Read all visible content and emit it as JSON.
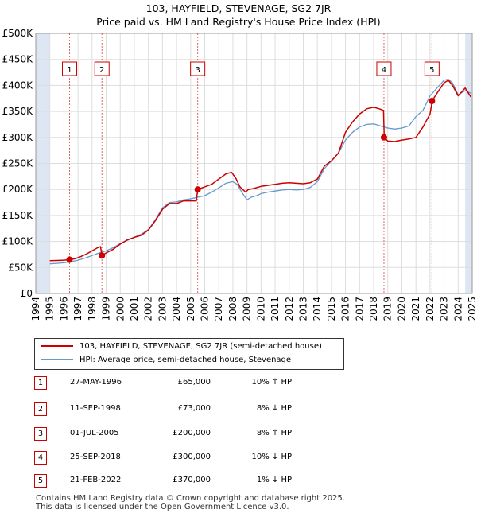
{
  "title_line1": "103, HAYFIELD, STEVENAGE, SG2 7JR",
  "title_line2": "Price paid vs. HM Land Registry's House Price Index (HPI)",
  "colors": {
    "property": "#cc0000",
    "hpi": "#6699cc",
    "shade": "#dde6f2",
    "grid": "#dddddd",
    "marker": "#cc0000"
  },
  "chart_data": {
    "type": "line",
    "xlim": [
      1994,
      2025
    ],
    "ylim": [
      0,
      500000
    ],
    "x_ticks": [
      "1994",
      "1995",
      "1996",
      "1997",
      "1998",
      "1999",
      "2000",
      "2001",
      "2002",
      "2003",
      "2004",
      "2005",
      "2006",
      "2007",
      "2008",
      "2009",
      "2010",
      "2011",
      "2012",
      "2013",
      "2014",
      "2015",
      "2016",
      "2017",
      "2018",
      "2019",
      "2020",
      "2021",
      "2022",
      "2023",
      "2024",
      "2025"
    ],
    "y_ticks": [
      {
        "value": 0,
        "label": "£0"
      },
      {
        "value": 50000,
        "label": "£50K"
      },
      {
        "value": 100000,
        "label": "£100K"
      },
      {
        "value": 150000,
        "label": "£150K"
      },
      {
        "value": 200000,
        "label": "£200K"
      },
      {
        "value": 250000,
        "label": "£250K"
      },
      {
        "value": 300000,
        "label": "£300K"
      },
      {
        "value": 350000,
        "label": "£350K"
      },
      {
        "value": 400000,
        "label": "£400K"
      },
      {
        "value": 450000,
        "label": "£450K"
      },
      {
        "value": 500000,
        "label": "£500K"
      }
    ],
    "shaded_ranges": [
      [
        1994,
        1995
      ],
      [
        2024.5,
        2025
      ]
    ],
    "series": [
      {
        "name": "103, HAYFIELD, STEVENAGE, SG2 7JR (semi-detached house)",
        "color": "#cc0000",
        "x": [
          1995.0,
          1995.5,
          1996.0,
          1996.4,
          1996.8,
          1997.2,
          1997.6,
          1998.0,
          1998.4,
          1998.6,
          1998.7,
          1999.0,
          1999.5,
          2000.0,
          2000.5,
          2001.0,
          2001.5,
          2002.0,
          2002.5,
          2003.0,
          2003.5,
          2004.0,
          2004.5,
          2005.0,
          2005.4,
          2005.5,
          2006.0,
          2006.5,
          2007.0,
          2007.5,
          2007.9,
          2008.2,
          2008.5,
          2008.9,
          2009.1,
          2009.5,
          2010.0,
          2010.5,
          2011.0,
          2011.5,
          2012.0,
          2012.5,
          2013.0,
          2013.5,
          2014.0,
          2014.5,
          2015.0,
          2015.5,
          2016.0,
          2016.5,
          2017.0,
          2017.5,
          2018.0,
          2018.4,
          2018.7,
          2018.75,
          2019.0,
          2019.5,
          2020.0,
          2020.5,
          2021.0,
          2021.5,
          2022.0,
          2022.1,
          2022.14,
          2022.5,
          2023.0,
          2023.3,
          2023.6,
          2024.0,
          2024.5,
          2024.9
        ],
        "y": [
          63000,
          63500,
          64000,
          65000,
          67000,
          71000,
          76000,
          82000,
          88000,
          90000,
          73000,
          78000,
          85000,
          95000,
          103000,
          108000,
          112000,
          122000,
          140000,
          162000,
          173000,
          173000,
          178000,
          178000,
          178000,
          200000,
          205000,
          210000,
          220000,
          230000,
          233000,
          222000,
          205000,
          195000,
          200000,
          202000,
          206000,
          208000,
          210000,
          212000,
          213000,
          212000,
          211000,
          213000,
          220000,
          245000,
          255000,
          270000,
          310000,
          330000,
          345000,
          355000,
          358000,
          355000,
          352000,
          300000,
          293000,
          292000,
          295000,
          297000,
          300000,
          320000,
          345000,
          360000,
          370000,
          385000,
          405000,
          410000,
          400000,
          380000,
          395000,
          378000
        ]
      },
      {
        "name": "HPI: Average price, semi-detached house, Stevenage",
        "color": "#6699cc",
        "x": [
          1995.0,
          1995.5,
          1996.0,
          1996.5,
          1997.0,
          1997.5,
          1998.0,
          1998.5,
          1999.0,
          1999.5,
          2000.0,
          2000.5,
          2001.0,
          2001.5,
          2002.0,
          2002.5,
          2003.0,
          2003.5,
          2004.0,
          2004.5,
          2005.0,
          2005.5,
          2006.0,
          2006.5,
          2007.0,
          2007.5,
          2008.0,
          2008.3,
          2008.7,
          2009.0,
          2009.3,
          2009.7,
          2010.0,
          2010.5,
          2011.0,
          2011.5,
          2012.0,
          2012.5,
          2013.0,
          2013.5,
          2014.0,
          2014.5,
          2015.0,
          2015.5,
          2016.0,
          2016.5,
          2017.0,
          2017.5,
          2018.0,
          2018.5,
          2019.0,
          2019.5,
          2020.0,
          2020.5,
          2021.0,
          2021.5,
          2022.0,
          2022.5,
          2023.0,
          2023.3,
          2023.6,
          2024.0,
          2024.5,
          2024.9
        ],
        "y": [
          57000,
          58000,
          59000,
          61000,
          64000,
          68000,
          73000,
          78000,
          82000,
          88000,
          96000,
          102000,
          108000,
          114000,
          123000,
          142000,
          165000,
          175000,
          176000,
          180000,
          182000,
          185000,
          188000,
          195000,
          203000,
          212000,
          215000,
          210000,
          192000,
          180000,
          185000,
          188000,
          192000,
          195000,
          197000,
          199000,
          200000,
          199000,
          200000,
          204000,
          215000,
          240000,
          255000,
          270000,
          295000,
          310000,
          320000,
          325000,
          326000,
          322000,
          318000,
          316000,
          318000,
          322000,
          340000,
          352000,
          380000,
          395000,
          410000,
          412000,
          405000,
          382000,
          390000,
          385000
        ]
      }
    ],
    "sales": [
      {
        "label": "1",
        "date": "27-MAY-1996",
        "x": 1996.4,
        "price": 65000,
        "price_label": "£65,000",
        "hpi": "10% ↑ HPI"
      },
      {
        "label": "2",
        "date": "11-SEP-1998",
        "x": 1998.7,
        "price": 73000,
        "price_label": "£73,000",
        "hpi": "8% ↓ HPI"
      },
      {
        "label": "3",
        "date": "01-JUL-2005",
        "x": 2005.5,
        "price": 200000,
        "price_label": "£200,000",
        "hpi": "8% ↑ HPI"
      },
      {
        "label": "4",
        "date": "25-SEP-2018",
        "x": 2018.73,
        "price": 300000,
        "price_label": "£300,000",
        "hpi": "10% ↓ HPI"
      },
      {
        "label": "5",
        "date": "21-FEB-2022",
        "x": 2022.14,
        "price": 370000,
        "price_label": "£370,000",
        "hpi": "1% ↓ HPI"
      }
    ]
  },
  "legend": {
    "property_label": "103, HAYFIELD, STEVENAGE, SG2 7JR (semi-detached house)",
    "hpi_label": "HPI: Average price, semi-detached house, Stevenage"
  },
  "footer": {
    "line1": "Contains HM Land Registry data © Crown copyright and database right 2025.",
    "line2": "This data is licensed under the Open Government Licence v3.0."
  }
}
